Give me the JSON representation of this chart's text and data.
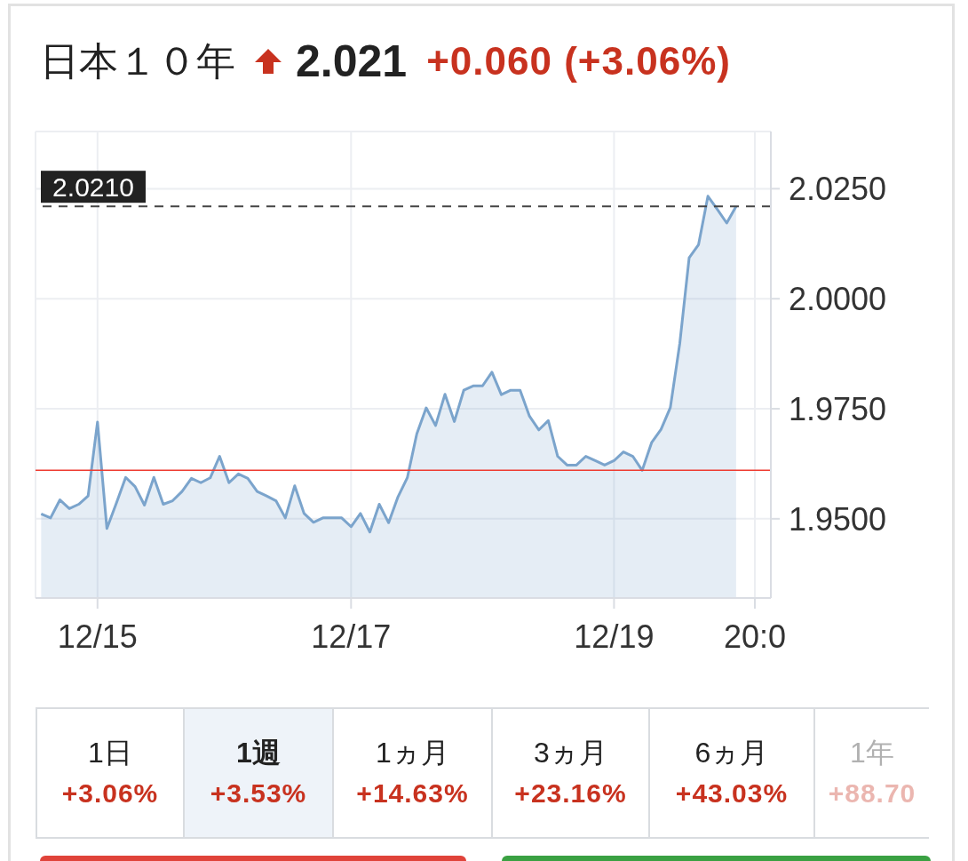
{
  "chart_data": {
    "type": "area",
    "title": "日本１０年",
    "annotations": [
      "2.021",
      "+0.060 (+3.06%)",
      "1日",
      "+3.06%",
      "1週",
      "+3.53%",
      "1ヵ月",
      "+14.63%",
      "3ヵ月",
      "+23.16%",
      "6ヵ月",
      "+43.03%",
      "1年",
      "+88.70"
    ],
    "categories": [
      null,
      null,
      null,
      null,
      null,
      null,
      "12/15",
      null,
      null,
      null,
      null,
      null,
      null,
      null,
      null,
      null,
      null,
      null,
      null,
      null,
      null,
      null,
      null,
      null,
      null,
      null,
      null,
      null,
      null,
      null,
      null,
      null,
      null,
      "12/17",
      null,
      null,
      null,
      null,
      null,
      null,
      null,
      null,
      null,
      null,
      null,
      null,
      null,
      null,
      null,
      null,
      null,
      null,
      null,
      null,
      null,
      null,
      null,
      null,
      null,
      null,
      null,
      "12/19",
      null,
      null,
      null,
      null,
      null,
      null,
      null,
      null,
      null,
      null,
      null,
      null,
      null,
      null,
      "20:0"
    ],
    "values": [
      1.9511,
      1.9502,
      1.9543,
      1.9523,
      1.9533,
      1.9552,
      1.972,
      1.9478,
      1.9535,
      1.9594,
      1.9573,
      1.9531,
      1.9594,
      1.9533,
      1.9541,
      1.9562,
      1.9592,
      1.9582,
      1.9593,
      1.9642,
      1.9582,
      1.9602,
      1.9592,
      1.9562,
      1.9552,
      1.9541,
      1.9502,
      1.9575,
      1.9512,
      1.9492,
      1.9502,
      1.9502,
      1.9502,
      1.9482,
      1.9512,
      1.947,
      1.9533,
      1.9491,
      1.955,
      1.9594,
      1.9693,
      1.9752,
      1.9712,
      1.9783,
      1.9721,
      1.9792,
      1.9802,
      1.9802,
      1.9833,
      1.9782,
      1.9792,
      1.9792,
      1.9733,
      1.9702,
      1.9723,
      1.9642,
      1.9622,
      1.9622,
      1.9642,
      1.9632,
      1.9622,
      1.9632,
      1.9652,
      1.9642,
      1.961,
      1.9673,
      1.9703,
      1.9753,
      1.9898,
      2.0093,
      2.0123,
      2.0233,
      2.0203,
      2.0172,
      2.021,
      null,
      null
    ],
    "color": "#7ba4cc",
    "ylim": [
      1.932,
      2.038
    ],
    "yticks": [
      {
        "value": 1.95,
        "label": "1.9500"
      },
      {
        "value": 1.975,
        "label": "1.9750"
      },
      {
        "value": 2.0,
        "label": "2.0000"
      },
      {
        "value": 2.025,
        "label": "2.0250"
      }
    ],
    "grid": true,
    "ref_lines": [
      {
        "axis": "y",
        "value": 1.961,
        "color": "#ee3b30"
      },
      {
        "axis": "y",
        "value": 2.021,
        "label": "2.0210",
        "color": "#444444",
        "line_style": "dashed"
      }
    ]
  }
}
